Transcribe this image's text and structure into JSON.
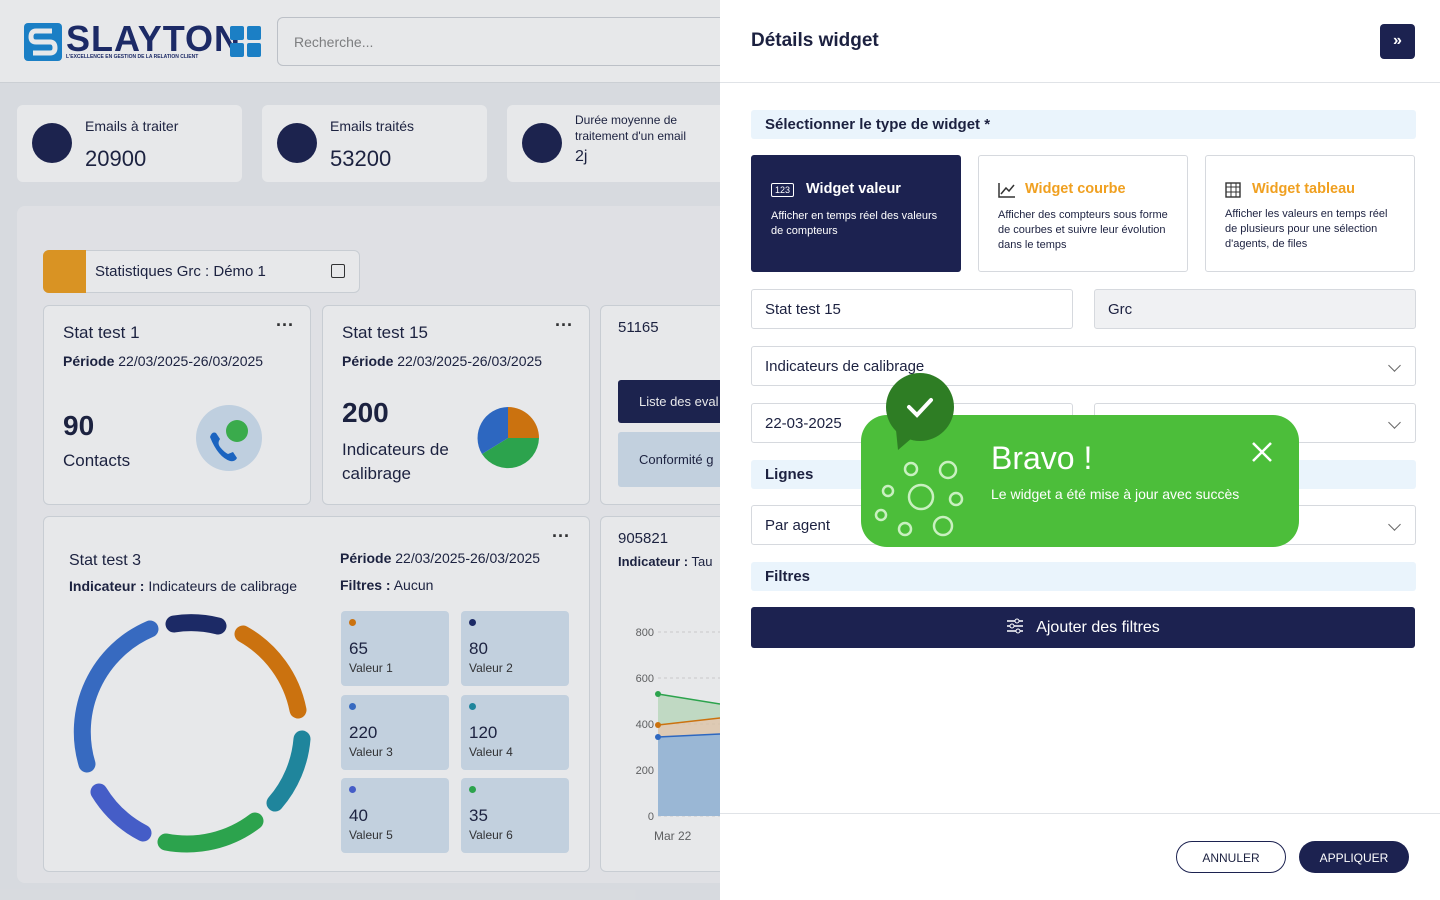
{
  "header": {
    "logo": "SLAYTON",
    "tagline": "L'EXCELLENCE EN GESTION DE LA RELATION CLIENT",
    "search_placeholder": "Recherche..."
  },
  "kpis": [
    {
      "label": "Emails à traiter",
      "value": "20900"
    },
    {
      "label": "Emails traités",
      "value": "53200"
    },
    {
      "label": "Durée moyenne de traitement d'un email",
      "value": "2j"
    }
  ],
  "dashboard": {
    "title": "Statistiques Grc : Démo 1",
    "widgets": [
      {
        "title": "Stat test 1",
        "period_label": "Période",
        "period": "22/03/2025-26/03/2025",
        "value": "90",
        "unit": "Contacts"
      },
      {
        "title": "Stat test 15",
        "period_label": "Période",
        "period": "22/03/2025-26/03/2025",
        "value": "200",
        "unit": "Indicateurs de calibrage"
      },
      {
        "title": "51165",
        "buttons": [
          "Liste des eval",
          "Conformité g"
        ]
      },
      {
        "title": "Stat test 3",
        "indicator_label": "Indicateur :",
        "indicator": "Indicateurs de calibrage",
        "period_label": "Période",
        "period": "22/03/2025-26/03/2025",
        "filters_label": "Filtres :",
        "filters": "Aucun",
        "tiles": [
          {
            "value": "65",
            "label": "Valeur 1"
          },
          {
            "value": "80",
            "label": "Valeur 2"
          },
          {
            "value": "220",
            "label": "Valeur 3"
          },
          {
            "value": "120",
            "label": "Valeur 4"
          },
          {
            "value": "40",
            "label": "Valeur 5"
          },
          {
            "value": "35",
            "label": "Valeur 6"
          }
        ]
      },
      {
        "title": "905821",
        "indicator_label": "Indicateur :",
        "indicator": "Tau",
        "yticks": [
          800,
          600,
          400,
          200,
          0
        ],
        "x_first": "Mar 22"
      }
    ]
  },
  "panel": {
    "title": "Détails widget",
    "type_section": "Sélectionner le type de widget *",
    "types": [
      {
        "icon": "123",
        "title": "Widget valeur",
        "description": "Afficher en temps réel des valeurs de compteurs"
      },
      {
        "title": "Widget courbe",
        "description": "Afficher des compteurs sous forme de courbes et suivre leur évolution dans le temps"
      },
      {
        "title": "Widget tableau",
        "description": "Afficher les valeurs en temps réel de plusieurs pour une sélection d'agents, de files"
      }
    ],
    "name": "Stat test 15",
    "group": "Grc",
    "indicator": "Indicateurs de calibrage",
    "date": "22-03-2025",
    "lines_section": "Lignes",
    "lines": "Par agent",
    "filters_section": "Filtres",
    "add_filters": "Ajouter des filtres",
    "cancel": "ANNULER",
    "apply": "APPLIQUER"
  },
  "toast": {
    "title": "Bravo !",
    "message": "Le widget a été mise à jour avec succès"
  }
}
